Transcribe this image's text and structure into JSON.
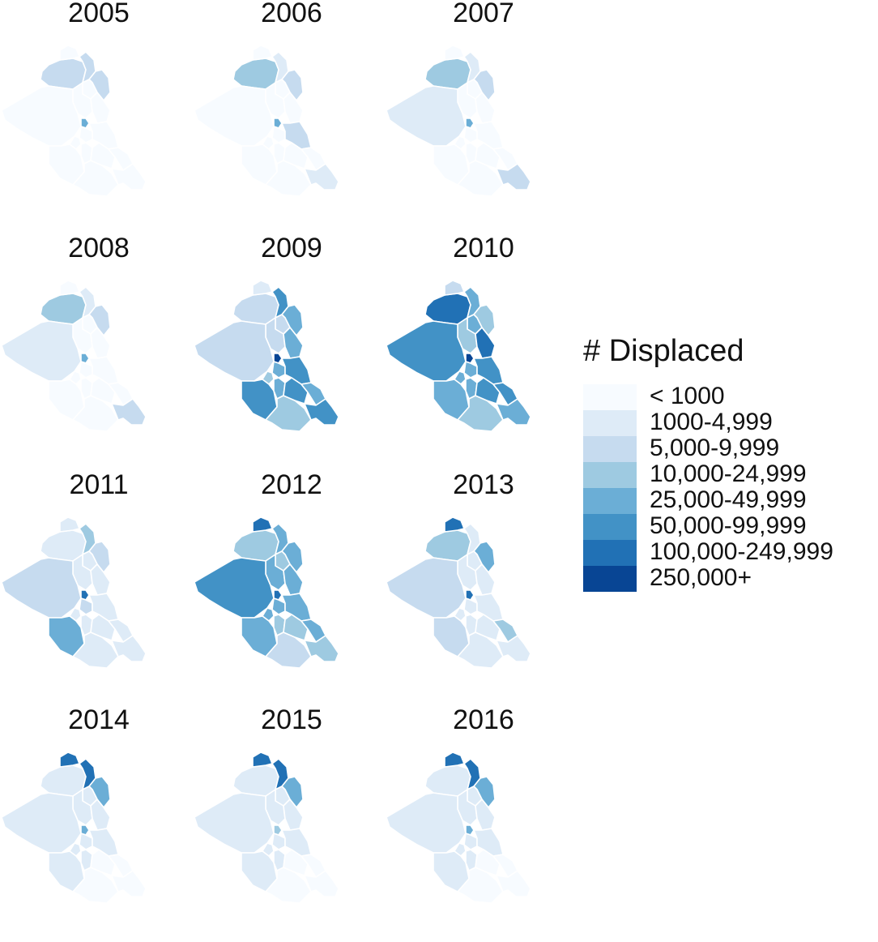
{
  "legend": {
    "title": "# Displaced",
    "classes": [
      {
        "label": "< 1000",
        "color": "#f7fbff"
      },
      {
        "label": "1000-4,999",
        "color": "#deebf7"
      },
      {
        "label": "5,000-9,999",
        "color": "#c6dbef"
      },
      {
        "label": "10,000-24,999",
        "color": "#9ecae1"
      },
      {
        "label": "25,000-49,999",
        "color": "#6baed6"
      },
      {
        "label": "50,000-99,999",
        "color": "#4292c6"
      },
      {
        "label": "100,000-249,999",
        "color": "#2171b5"
      },
      {
        "label": "250,000+",
        "color": "#084594"
      }
    ]
  },
  "panels": [
    {
      "year": "2005"
    },
    {
      "year": "2006"
    },
    {
      "year": "2007"
    },
    {
      "year": "2008"
    },
    {
      "year": "2009"
    },
    {
      "year": "2010"
    },
    {
      "year": "2011"
    },
    {
      "year": "2012"
    },
    {
      "year": "2013"
    },
    {
      "year": "2014"
    },
    {
      "year": "2015"
    },
    {
      "year": "2016"
    }
  ]
}
